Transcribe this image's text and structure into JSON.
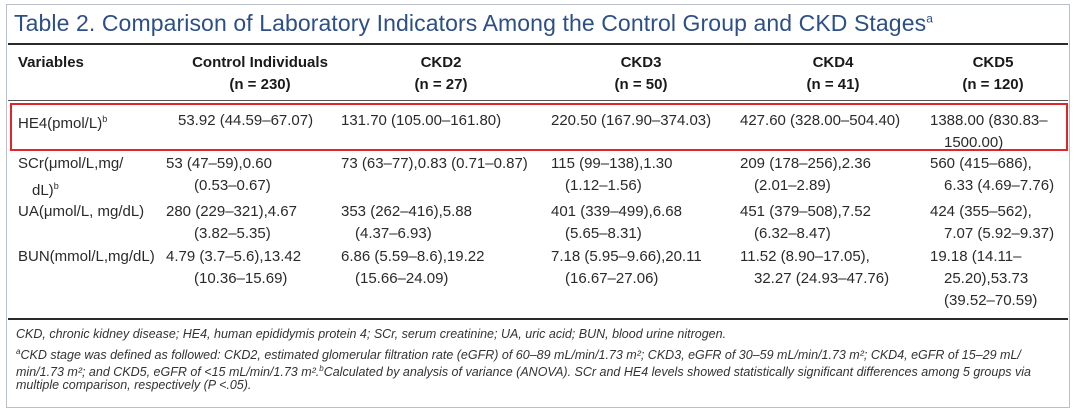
{
  "title": {
    "text": "Table 2. Comparison of Laboratory Indicators Among the Control Group and CKD Stages",
    "sup": "a"
  },
  "columns": {
    "variables": "Variables",
    "control": {
      "name": "Control Individuals",
      "n": "(n = 230)"
    },
    "ckd2": {
      "name": "CKD2",
      "n": "(n = 27)"
    },
    "ckd3": {
      "name": "CKD3",
      "n": "(n = 50)"
    },
    "ckd4": {
      "name": "CKD4",
      "n": "(n = 41)"
    },
    "ckd5": {
      "name": "CKD5",
      "n": "(n = 120)"
    }
  },
  "rows": [
    {
      "variable": "HE4(pmol/L)",
      "sup": "b",
      "control": "53.92 (44.59–67.07)",
      "ckd2": "131.70 (105.00–161.80)",
      "ckd3": "220.50 (167.90–374.03)",
      "ckd4": "427.60 (328.00–504.40)",
      "ckd5": [
        "1388.00 (830.83–",
        "1500.00)"
      ]
    },
    {
      "variable": [
        "SCr(μmol/L,mg/",
        "dL)"
      ],
      "sup": "b",
      "control": [
        "53 (47–59),0.60",
        "(0.53–0.67)"
      ],
      "ckd2": [
        "73 (63–77),0.83 (0.71–0.87)"
      ],
      "ckd3": [
        "115 (99–138),1.30",
        "(1.12–1.56)"
      ],
      "ckd4": [
        "209 (178–256),2.36",
        "(2.01–2.89)"
      ],
      "ckd5": [
        "560 (415–686),",
        "6.33 (4.69–7.76)"
      ]
    },
    {
      "variable": "UA(μmol/L, mg/dL)",
      "control": [
        "280 (229–321),4.67",
        "(3.82–5.35)"
      ],
      "ckd2": [
        "353 (262–416),5.88",
        "(4.37–6.93)"
      ],
      "ckd3": [
        "401 (339–499),6.68",
        "(5.65–8.31)"
      ],
      "ckd4": [
        "451 (379–508),7.52",
        "(6.32–8.47)"
      ],
      "ckd5": [
        "424 (355–562),",
        "7.07 (5.92–9.37)"
      ]
    },
    {
      "variable": "BUN(mmol/L,mg/dL)",
      "control": [
        "4.79 (3.7–5.6),13.42",
        "(10.36–15.69)"
      ],
      "ckd2": [
        "6.86 (5.59–8.6),19.22",
        "(15.66–24.09)"
      ],
      "ckd3": [
        "7.18 (5.95–9.66),20.11",
        "(16.67–27.06)"
      ],
      "ckd4": [
        "11.52 (8.90–17.05),",
        "32.27 (24.93–47.76)"
      ],
      "ckd5": [
        "19.18 (14.11–",
        "25.20),53.73",
        "(39.52–70.59)"
      ]
    }
  ],
  "footnotes": {
    "abbrev": "CKD, chronic kidney disease; HE4, human epididymis protein 4; SCr, serum creatinine; UA, uric acid; BUN, blood urine nitrogen.",
    "a_mark": "a",
    "a_line1": "CKD stage was defined as followed: CKD2, estimated glomerular filtration rate (eGFR) of 60–89 mL/min/1.73 m²; CKD3, eGFR of 30–59 mL/min/1.73 m²; CKD4, eGFR of 15–29 mL/",
    "a_line2a": "min/1.73 m²; and CKD5, eGFR of <15 mL/min/1.73 m².",
    "b_mark": "b",
    "a_line2b": "Calculated by analysis of variance (ANOVA). SCr and HE4 levels showed statistically significant differences among 5 groups via",
    "line3": "multiple comparison, respectively (P <.05)."
  },
  "highlight_color": "#e0262b",
  "title_color": "#2d4f86"
}
